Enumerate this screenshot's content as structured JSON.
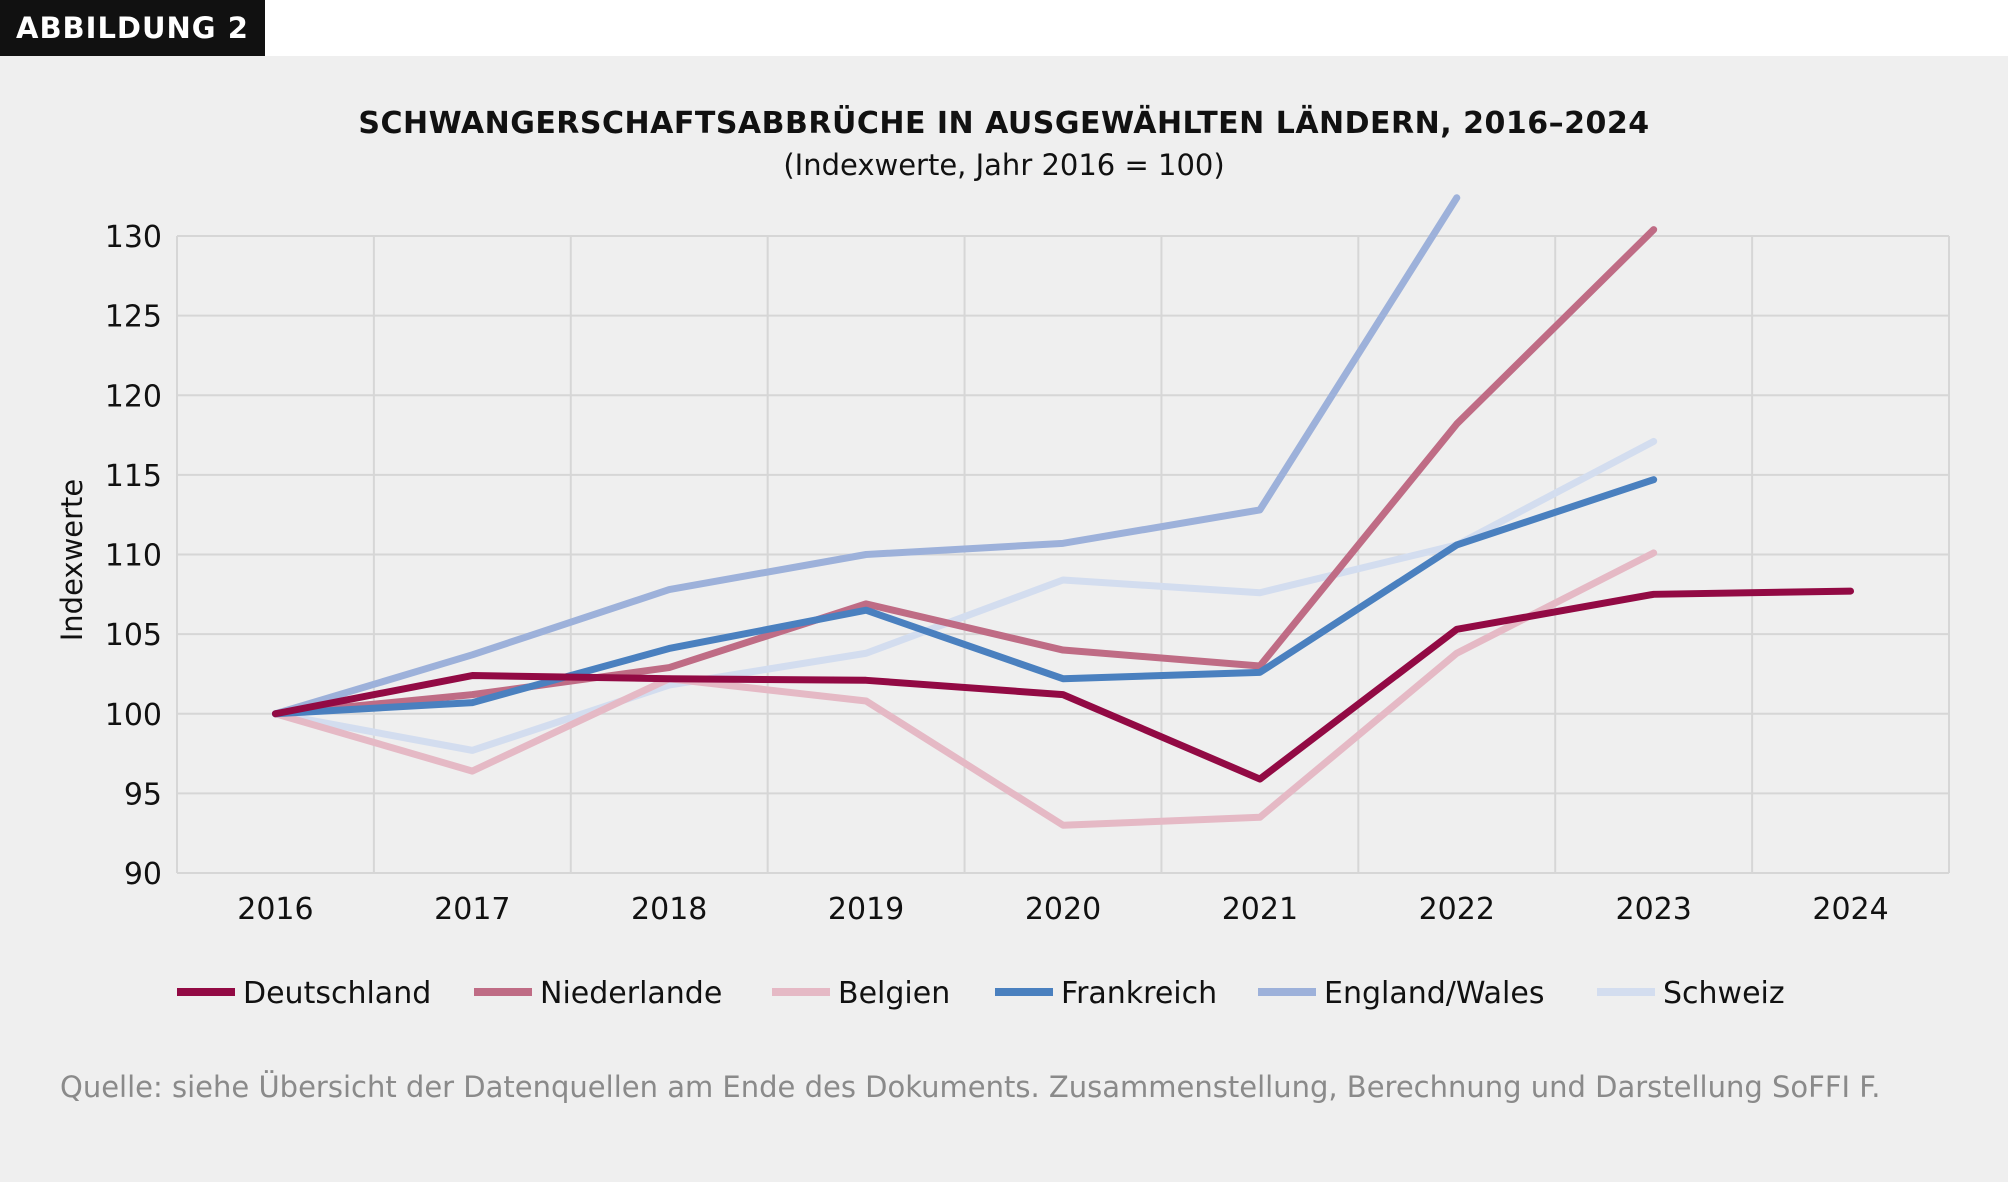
{
  "badge": "ABBILDUNG 2",
  "chart_data": {
    "type": "line",
    "title": "SCHWANGERSCHAFTSABBRÜCHE IN AUSGEWÄHLTEN LÄNDERN, 2016–2024",
    "subtitle": "(Indexwerte, Jahr 2016 = 100)",
    "xlabel": "",
    "ylabel": "Indexwerte",
    "ylim": [
      90,
      130
    ],
    "yticks": [
      90,
      95,
      100,
      105,
      110,
      115,
      120,
      125,
      130
    ],
    "categories": [
      "2016",
      "2017",
      "2018",
      "2019",
      "2020",
      "2021",
      "2022",
      "2023",
      "2024"
    ],
    "grid": true,
    "legend_position": "bottom",
    "series": [
      {
        "name": "Deutschland",
        "color": "#920a44",
        "values": [
          100,
          102.4,
          102.2,
          102.1,
          101.2,
          95.9,
          105.3,
          107.5,
          107.7
        ]
      },
      {
        "name": "Niederlande",
        "color": "#bf6c85",
        "values": [
          100,
          101.2,
          102.9,
          106.9,
          104.0,
          103.0,
          118.2,
          130.4,
          null
        ]
      },
      {
        "name": "Belgien",
        "color": "#e5b9c5",
        "values": [
          100,
          96.4,
          102.2,
          100.8,
          93.0,
          93.5,
          103.8,
          110.1,
          null
        ]
      },
      {
        "name": "Frankreich",
        "color": "#4a80bf",
        "values": [
          100,
          100.7,
          104.1,
          106.5,
          102.2,
          102.6,
          110.6,
          114.7,
          null
        ]
      },
      {
        "name": "England/Wales",
        "color": "#9db1da",
        "values": [
          100,
          103.7,
          107.8,
          110.0,
          110.7,
          112.8,
          132.4,
          null,
          null
        ]
      },
      {
        "name": "Schweiz",
        "color": "#d3ddef",
        "values": [
          100,
          97.7,
          101.8,
          103.8,
          108.4,
          107.6,
          110.6,
          117.1,
          null
        ]
      }
    ]
  },
  "source": "Quelle: siehe Übersicht der Datenquellen am Ende des Dokuments. Zusammenstellung, Berechnung und Darstellung SoFFI F."
}
